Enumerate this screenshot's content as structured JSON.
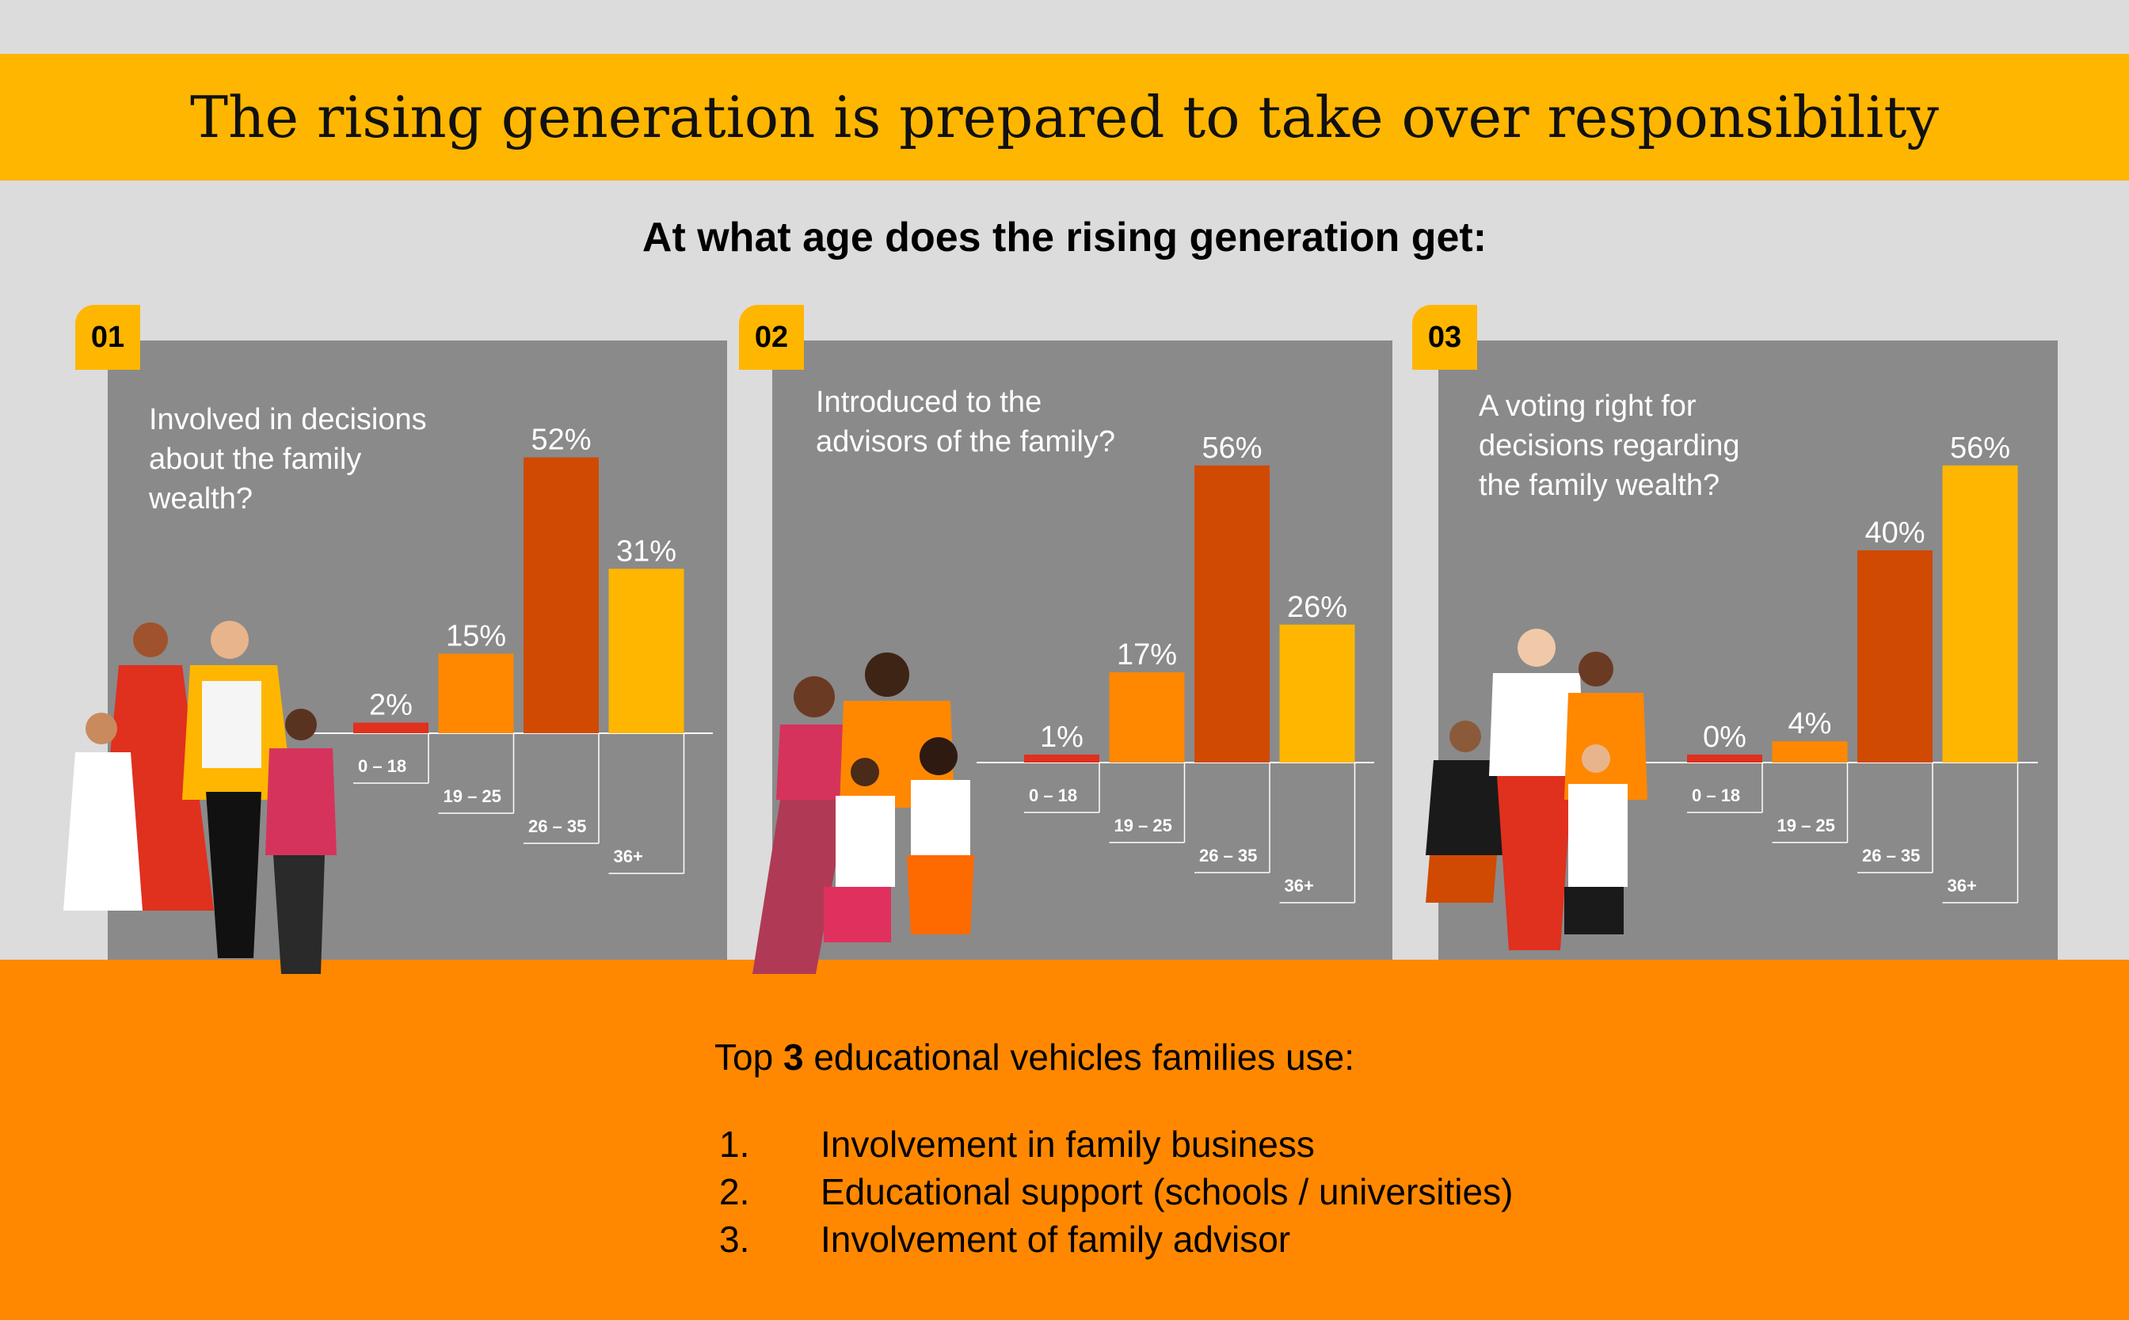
{
  "title": "The rising generation is prepared to take over responsibility",
  "subtitle": "At what age does the rising generation get:",
  "colors": {
    "banner": "#FFB600",
    "panel": "#8a8a8a",
    "floor": "#FF8800",
    "background": "#dcdcdc",
    "series": [
      "#E0301E",
      "#FF8800",
      "#D04A02",
      "#FFB600"
    ]
  },
  "chart_data": [
    {
      "type": "bar",
      "number": "01",
      "title": "Involved in decisions about the family wealth?",
      "title_lines": [
        "Involved in decisions",
        "about the family",
        "wealth?"
      ],
      "categories": [
        "0 – 18",
        "19 – 25",
        "26 – 35",
        "36+"
      ],
      "values": [
        2,
        15,
        52,
        31
      ],
      "labels": [
        "2%",
        "15%",
        "52%",
        "31%"
      ],
      "ylim": [
        0,
        56
      ]
    },
    {
      "type": "bar",
      "number": "02",
      "title": "Introduced to the advisors of the family?",
      "title_lines": [
        "Introduced to the",
        "advisors of the family?"
      ],
      "categories": [
        "0 – 18",
        "19 – 25",
        "26 – 35",
        "36+"
      ],
      "values": [
        1,
        17,
        56,
        26
      ],
      "labels": [
        "1%",
        "17%",
        "56%",
        "26%"
      ],
      "ylim": [
        0,
        56
      ]
    },
    {
      "type": "bar",
      "number": "03",
      "title": "A voting right for decisions regarding the family wealth?",
      "title_lines": [
        "A voting right for",
        "decisions regarding",
        "the family wealth?"
      ],
      "categories": [
        "0 – 18",
        "19 – 25",
        "26 – 35",
        "36+"
      ],
      "values": [
        0,
        4,
        40,
        56
      ],
      "labels": [
        "0%",
        "4%",
        "40%",
        "56%"
      ],
      "ylim": [
        0,
        56
      ]
    }
  ],
  "footer": {
    "heading_pre": "Top ",
    "heading_num": "3",
    "heading_post": " educational vehicles families use:",
    "items": [
      {
        "num": "1.",
        "text": "Involvement in family business"
      },
      {
        "num": "2.",
        "text": "Educational support (schools / universities)"
      },
      {
        "num": "3.",
        "text": "Involvement of family advisor"
      }
    ]
  }
}
